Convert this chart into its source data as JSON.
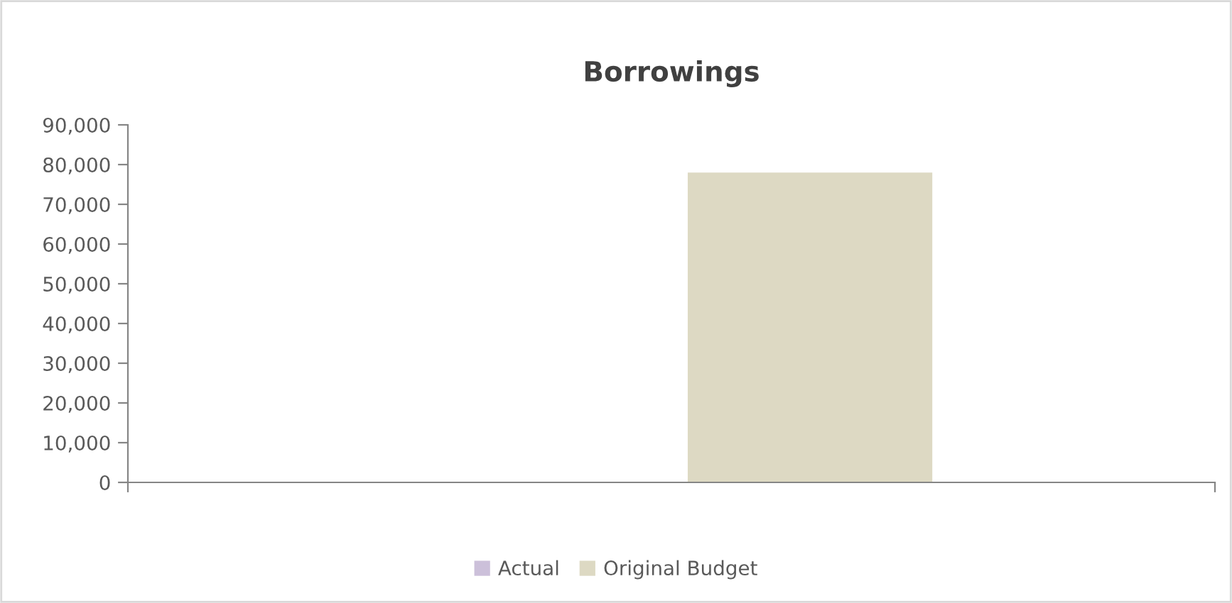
{
  "chart_data": {
    "type": "bar",
    "title": "Borrowings",
    "categories": [
      null
    ],
    "series": [
      {
        "name": "Actual",
        "color": "#ccc0da",
        "values": [
          0
        ]
      },
      {
        "name": "Original Budget",
        "color": "#ddd9c3",
        "values": [
          78000
        ]
      }
    ],
    "ylim": [
      0,
      90000
    ],
    "yticks": [
      {
        "value": 0,
        "label": "0"
      },
      {
        "value": 10000,
        "label": "10,000"
      },
      {
        "value": 20000,
        "label": "20,000"
      },
      {
        "value": 30000,
        "label": "30,000"
      },
      {
        "value": 40000,
        "label": "40,000"
      },
      {
        "value": 50000,
        "label": "50,000"
      },
      {
        "value": 60000,
        "label": "60,000"
      },
      {
        "value": 70000,
        "label": "70,000"
      },
      {
        "value": 80000,
        "label": "80,000"
      },
      {
        "value": 90000,
        "label": "90,000"
      }
    ],
    "grid": false,
    "legend": "bottom"
  }
}
